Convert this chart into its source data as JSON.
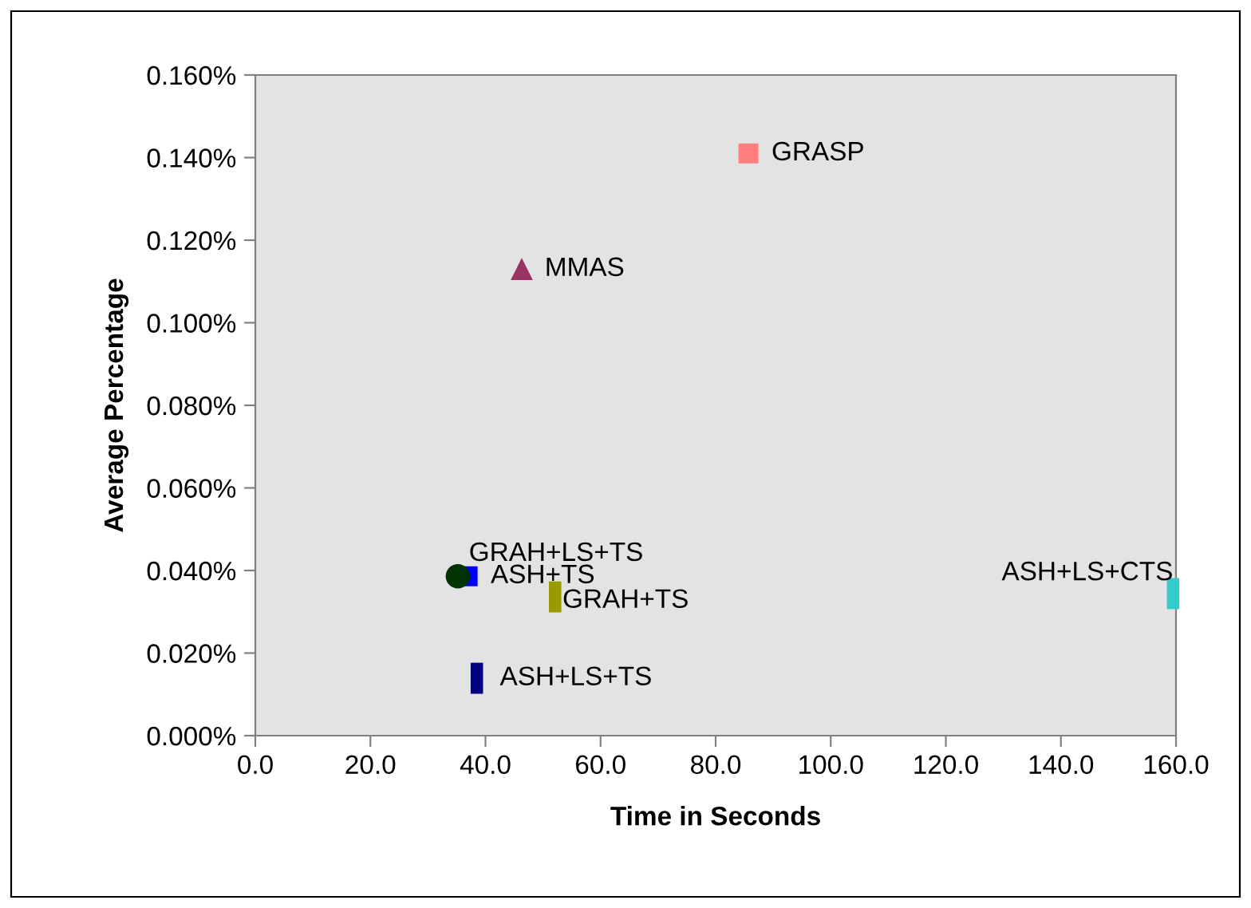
{
  "chart_data": {
    "type": "scatter",
    "xlabel": "Time in Seconds",
    "ylabel": "Average Percentage",
    "xlim": [
      0,
      160
    ],
    "ylim": [
      0,
      0.16
    ],
    "xticks": [
      {
        "value": 0,
        "label": "0.0"
      },
      {
        "value": 20,
        "label": "20.0"
      },
      {
        "value": 40,
        "label": "40.0"
      },
      {
        "value": 60,
        "label": "60.0"
      },
      {
        "value": 80,
        "label": "80.0"
      },
      {
        "value": 100,
        "label": "100.0"
      },
      {
        "value": 120,
        "label": "120.0"
      },
      {
        "value": 140,
        "label": "140.0"
      },
      {
        "value": 160,
        "label": "160.0"
      }
    ],
    "yticks": [
      {
        "value": 0,
        "label": "0.000%"
      },
      {
        "value": 0.02,
        "label": "0.020%"
      },
      {
        "value": 0.04,
        "label": "0.040%"
      },
      {
        "value": 0.06,
        "label": "0.060%"
      },
      {
        "value": 0.08,
        "label": "0.080%"
      },
      {
        "value": 0.1,
        "label": "0.100%"
      },
      {
        "value": 0.12,
        "label": "0.120%"
      },
      {
        "value": 0.14,
        "label": "0.140%"
      },
      {
        "value": 0.16,
        "label": "0.160%"
      }
    ],
    "grid": false,
    "legend": false,
    "series": [
      {
        "name": "GRASP",
        "color": "#ff7f7f",
        "marker": "square",
        "x": [
          85.7
        ],
        "values": [
          0.141
        ]
      },
      {
        "name": "MMAS",
        "color": "#993366",
        "marker": "triangle",
        "x": [
          46.3
        ],
        "values": [
          0.113
        ]
      },
      {
        "name": "ASH+TS",
        "color": "#0000ff",
        "marker": "square",
        "x": [
          36.9
        ],
        "values": [
          0.0386
        ]
      },
      {
        "name": "GRAH+LS+TS",
        "color": "#003300",
        "marker": "circle",
        "x": [
          35.2
        ],
        "values": [
          0.0386
        ]
      },
      {
        "name": "GRAH+TS",
        "color": "#999900",
        "x": [
          52.1
        ],
        "values": [
          0.0336
        ]
      },
      {
        "name": "ASH+LS+TS",
        "color": "#000080",
        "x": [
          38.5
        ],
        "values": [
          0.0139
        ]
      },
      {
        "name": "ASH+LS+CTS",
        "color": "#33cccc",
        "x": [
          159.5
        ],
        "values": [
          0.0344
        ]
      }
    ]
  }
}
